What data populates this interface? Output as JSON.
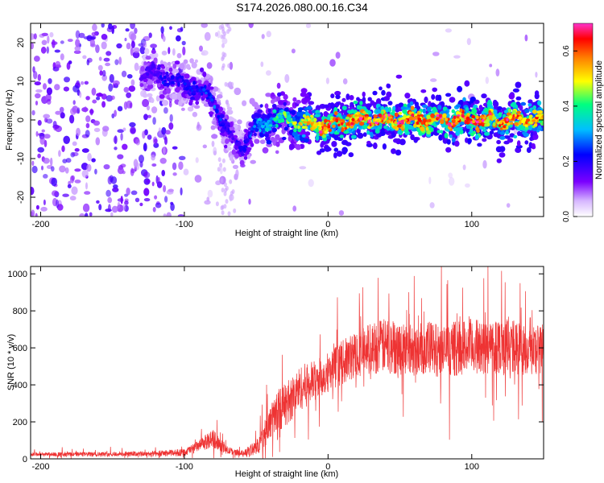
{
  "title": "S174.2026.080.00.16.C34",
  "colors": {
    "snr_line": "#ee3333",
    "spectrogram_palette": [
      "#ffffff",
      "#7b00ff",
      "#0000ff",
      "#00bfff",
      "#00ff80",
      "#ffff00",
      "#ff8000",
      "#ff0000",
      "#ff33cc"
    ]
  },
  "chart_data": [
    {
      "type": "heatmap",
      "name": "spectrogram",
      "xlabel": "Height of straight line (km)",
      "ylabel": "Frequency (Hz)",
      "xlim": [
        -207,
        150
      ],
      "ylim": [
        -25,
        25
      ],
      "xticks": [
        -200,
        -100,
        0,
        100
      ],
      "xtick_labels": [
        "-200",
        "-100",
        "0",
        "100"
      ],
      "yticks": [
        20,
        10,
        0,
        -10,
        -20
      ],
      "ytick_labels": [
        "20",
        "10",
        "0",
        "-10",
        "-20"
      ],
      "ridge": {
        "x": [
          -130,
          -115,
          -100,
          -90,
          -80,
          -75,
          -70,
          -65,
          -60,
          -55,
          -50,
          -40,
          -30,
          -20,
          -10,
          0,
          20,
          40,
          60,
          80,
          100,
          120,
          150
        ],
        "freq": [
          12,
          11,
          9,
          8,
          5,
          1,
          -3,
          -6,
          -7,
          -4,
          -2,
          0,
          0.5,
          -1,
          -1.5,
          -1.5,
          0,
          0,
          0,
          0,
          0,
          0,
          0
        ],
        "peak_amplitude": [
          0.15,
          0.2,
          0.2,
          0.22,
          0.25,
          0.22,
          0.2,
          0.18,
          0.2,
          0.22,
          0.3,
          0.35,
          0.4,
          0.45,
          0.55,
          0.6,
          0.6,
          0.6,
          0.62,
          0.6,
          0.65,
          0.6,
          0.55
        ]
      },
      "colorbar": {
        "label": "Normalized spectral amplitude",
        "range": [
          0,
          0.7
        ],
        "ticks": [
          0.0,
          0.2,
          0.4,
          0.6
        ],
        "tick_labels": [
          "0.0",
          "0.2",
          "0.4",
          "0.6"
        ]
      }
    },
    {
      "type": "line",
      "name": "snr",
      "xlabel": "Height of straight line (km)",
      "ylabel": "SNR (10 * v/v)",
      "xlim": [
        -207,
        150
      ],
      "ylim": [
        0,
        1040
      ],
      "xticks": [
        -200,
        -100,
        0,
        100
      ],
      "xtick_labels": [
        "-200",
        "-100",
        "0",
        "100"
      ],
      "yticks": [
        0,
        200,
        400,
        600,
        800,
        1000
      ],
      "ytick_labels": [
        "0",
        "200",
        "400",
        "600",
        "800",
        "1000"
      ],
      "series": [
        {
          "name": "SNR",
          "x": [
            -207,
            -180,
            -150,
            -120,
            -100,
            -90,
            -80,
            -75,
            -70,
            -60,
            -50,
            -45,
            -40,
            -35,
            -30,
            -25,
            -20,
            -15,
            -10,
            -5,
            0,
            10,
            20,
            30,
            40,
            50,
            60,
            70,
            80,
            90,
            100,
            110,
            120,
            130,
            140,
            150
          ],
          "y": [
            25,
            25,
            25,
            28,
            35,
            70,
            110,
            80,
            45,
            30,
            60,
            120,
            200,
            260,
            290,
            330,
            380,
            400,
            420,
            440,
            470,
            520,
            570,
            600,
            610,
            600,
            590,
            600,
            580,
            600,
            610,
            600,
            620,
            600,
            590,
            600
          ],
          "spread": [
            10,
            12,
            12,
            15,
            20,
            30,
            50,
            40,
            20,
            15,
            40,
            70,
            90,
            110,
            120,
            120,
            120,
            120,
            110,
            110,
            110,
            120,
            130,
            140,
            150,
            150,
            140,
            150,
            140,
            150,
            150,
            150,
            160,
            150,
            140,
            140
          ]
        }
      ]
    }
  ]
}
